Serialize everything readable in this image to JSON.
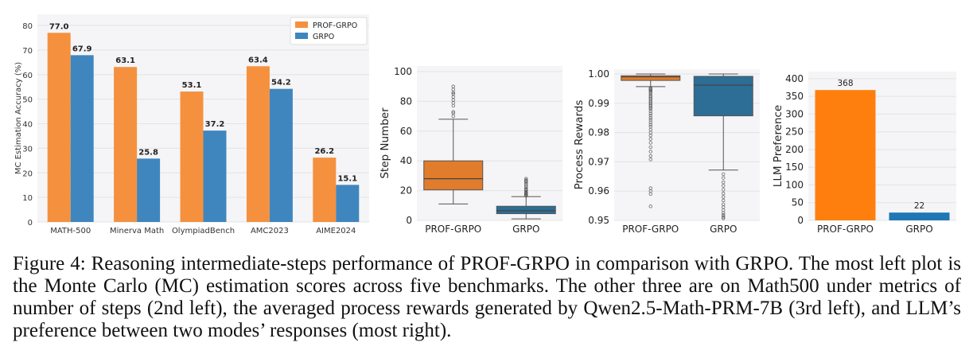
{
  "colors": {
    "prof": "#F5913E",
    "grpo": "#3F86BF",
    "prof_box": "#E07C2B",
    "grpo_box": "#2C6E96",
    "prof_bar": "#FF7F0E",
    "grpo_bar": "#1F77B4",
    "grid": "#E4E4E4",
    "panel_bg": "#F5F5F7"
  },
  "chart_data": [
    {
      "type": "bar",
      "ylabel": "MC Estimation Accuracy (%)",
      "xlabel": "",
      "ylim": [
        0,
        80
      ],
      "yticks": [
        "0",
        "10",
        "20",
        "30",
        "40",
        "50",
        "60",
        "70",
        "80"
      ],
      "categories": [
        "MATH-500",
        "Minerva Math",
        "OlympiadBench",
        "AMC2023",
        "AIME2024"
      ],
      "series": [
        {
          "name": "PROF-GRPO",
          "values": [
            77.0,
            63.1,
            53.1,
            63.4,
            26.2
          ],
          "labels": [
            "77.0",
            "63.1",
            "53.1",
            "63.4",
            "26.2"
          ]
        },
        {
          "name": "GRPO",
          "values": [
            67.9,
            25.8,
            37.2,
            54.2,
            15.1
          ],
          "labels": [
            "67.9",
            "25.8",
            "37.2",
            "54.2",
            "15.1"
          ]
        }
      ],
      "legend": "top-right",
      "grid": true
    },
    {
      "type": "box",
      "ylabel": "Step Number",
      "ylim": [
        0,
        100
      ],
      "yticks": [
        "0",
        "20",
        "40",
        "60",
        "80",
        "100"
      ],
      "categories": [
        "PROF-GRPO",
        "GRPO"
      ],
      "boxes": [
        {
          "q1": 20.5,
          "median": 28,
          "q3": 40,
          "whislo": 11,
          "whishi": 68,
          "fliers": [
            70,
            72,
            73,
            77,
            79,
            81,
            83,
            85,
            86,
            88,
            90
          ]
        },
        {
          "q1": 4.5,
          "median": 6.5,
          "q3": 9.5,
          "whislo": 1,
          "whishi": 16,
          "fliers": [
            16.5,
            17,
            17.5,
            18,
            18.5,
            19,
            20,
            20.5,
            21,
            22,
            23,
            24,
            25,
            26,
            26.5,
            27,
            28
          ]
        }
      ],
      "grid": true
    },
    {
      "type": "box",
      "ylabel": "Process Rewards",
      "ylim": [
        0.95,
        1.0
      ],
      "yticks": [
        "0.95",
        "0.96",
        "0.97",
        "0.98",
        "0.99",
        "1.00"
      ],
      "categories": [
        "PROF-GRPO",
        "GRPO"
      ],
      "boxes": [
        {
          "q1": 0.9978,
          "median": 0.999,
          "q3": 0.9994,
          "whislo": 0.9957,
          "whishi": 1.0,
          "fliers": [
            0.9953,
            0.995,
            0.9947,
            0.9944,
            0.994,
            0.9936,
            0.993,
            0.9925,
            0.992,
            0.9915,
            0.991,
            0.9905,
            0.99,
            0.9895,
            0.989,
            0.9885,
            0.988,
            0.9873,
            0.9865,
            0.9858,
            0.985,
            0.9843,
            0.9835,
            0.9827,
            0.982,
            0.981,
            0.98,
            0.979,
            0.9778,
            0.9765,
            0.975,
            0.9735,
            0.972,
            0.9708,
            0.961,
            0.96,
            0.959,
            0.9548
          ]
        },
        {
          "q1": 0.9857,
          "median": 0.9962,
          "q3": 0.9992,
          "whislo": 0.9672,
          "whishi": 1.0,
          "fliers": [
            0.9658,
            0.9645,
            0.963,
            0.9618,
            0.9605,
            0.9592,
            0.958,
            0.9568,
            0.9555,
            0.9545,
            0.9535,
            0.9525,
            0.9518,
            0.9512,
            0.9507
          ]
        }
      ],
      "grid": true
    },
    {
      "type": "bar",
      "ylabel": "LLM Preference",
      "ylim": [
        0,
        420
      ],
      "yticks": [
        "0",
        "50",
        "100",
        "150",
        "200",
        "250",
        "300",
        "350",
        "400"
      ],
      "categories": [
        "PROF-GRPO",
        "GRPO"
      ],
      "values": [
        368,
        22
      ],
      "labels": [
        "368",
        "22"
      ],
      "grid": true
    }
  ],
  "caption": "Figure 4: Reasoning intermediate-steps performance of PROF-GRPO in comparison with GRPO. The most left plot is the Monte Carlo (MC) estimation scores across five benchmarks. The other three are on Math500 under metrics of number of steps (2nd left), the averaged process rewards generated by Qwen2.5-Math-PRM-7B (3rd left), and LLM’s preference between two modes’ responses (most right)."
}
